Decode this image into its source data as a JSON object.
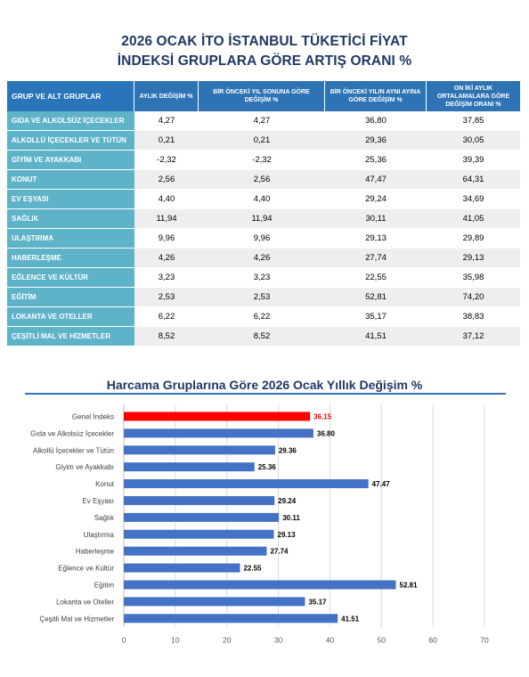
{
  "title": {
    "line1": "2026 OCAK İTO İSTANBUL TÜKETİCİ FİYAT",
    "line2": "İNDEKSİ GRUPLARA GÖRE ARTIŞ ORANI %"
  },
  "table": {
    "headers": [
      "GRUP VE ALT GRUPLAR",
      "AYLIK DEĞİŞİM %",
      "BİR ÖNCEKİ YIL SONUNA GÖRE DEĞİŞİM %",
      "BİR ÖNCEKİ YILIN AYNI AYINA GÖRE DEĞİŞİM %",
      "ON İKİ AYLIK ORTALAMALARA GÖRE DEĞİŞİM ORANI %"
    ],
    "rows": [
      {
        "label": "GIDA VE ALKOLSÜZ İÇECEKLER",
        "v": [
          "4,27",
          "4,27",
          "36,80",
          "37,85"
        ]
      },
      {
        "label": "ALKOLLÜ İÇECEKLER VE TÜTÜN",
        "v": [
          "0,21",
          "0,21",
          "29,36",
          "30,05"
        ]
      },
      {
        "label": "GİYİM VE AYAKKABI",
        "v": [
          "-2,32",
          "-2,32",
          "25,36",
          "39,39"
        ]
      },
      {
        "label": "KONUT",
        "v": [
          "2,56",
          "2,56",
          "47,47",
          "64,31"
        ]
      },
      {
        "label": "EV EŞYASI",
        "v": [
          "4,40",
          "4,40",
          "29,24",
          "34,69"
        ]
      },
      {
        "label": "SAĞLIK",
        "v": [
          "11,94",
          "11,94",
          "30,11",
          "41,05"
        ]
      },
      {
        "label": "ULAŞTIRMA",
        "v": [
          "9,96",
          "9,96",
          "29,13",
          "29,89"
        ]
      },
      {
        "label": "HABERLEŞME",
        "v": [
          "4,26",
          "4,26",
          "27,74",
          "29,13"
        ]
      },
      {
        "label": "EĞLENCE VE KÜLTÜR",
        "v": [
          "3,23",
          "3,23",
          "22,55",
          "35,98"
        ]
      },
      {
        "label": "EĞİTİM",
        "v": [
          "2,53",
          "2,53",
          "52,81",
          "74,20"
        ]
      },
      {
        "label": "LOKANTA VE OTELLER",
        "v": [
          "6,22",
          "6,22",
          "35,17",
          "38,83"
        ]
      },
      {
        "label": "ÇEŞİTLİ MAL VE HİZMETLER",
        "v": [
          "8,52",
          "8,52",
          "41,51",
          "37,12"
        ]
      }
    ]
  },
  "chart_data": {
    "type": "bar",
    "orientation": "horizontal",
    "title": "Harcama Gruplarına Göre 2026 Ocak Yıllık Değişim %",
    "categories": [
      "Genel İndeks",
      "Gıda ve Alkolsüz İçecekler",
      "Alkollü İçecekler ve Tütün",
      "Giyim ve Ayakkabı",
      "Konut",
      "Ev Eşyası",
      "Sağlık",
      "Ulaştırma",
      "Haberleşme",
      "Eğlence ve Kültür",
      "Eğitim",
      "Lokanta ve Oteller",
      "Çeşitli Mal ve Hizmetler"
    ],
    "values": [
      36.15,
      36.8,
      29.36,
      25.36,
      47.47,
      29.24,
      30.11,
      29.13,
      27.74,
      22.55,
      52.81,
      35.17,
      41.51
    ],
    "value_labels": [
      "36.15",
      "36.80",
      "29.36",
      "25.36",
      "47.47",
      "29.24",
      "30.11",
      "29.13",
      "27.74",
      "22.55",
      "52.81",
      "35.17",
      "41.51"
    ],
    "xlim": [
      0,
      70
    ],
    "xticks": [
      "0",
      "10",
      "20",
      "30",
      "40",
      "50",
      "60",
      "70"
    ],
    "grid": true,
    "colors": {
      "bar": "#4472c4",
      "highlight_bar": "#ff0000",
      "highlight_label": "#ff0000",
      "label": "#000000",
      "grid": "#d9d9d9"
    },
    "highlight_index": 0
  }
}
